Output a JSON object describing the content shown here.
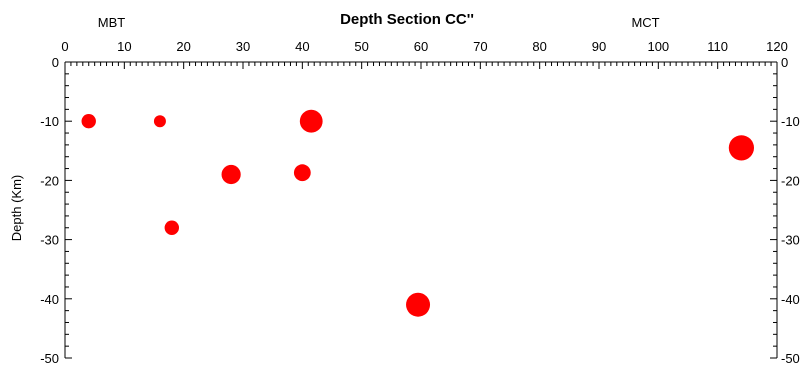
{
  "chart_data": {
    "type": "scatter",
    "title": "Depth Section CC''",
    "xlabel": "",
    "ylabel": "Depth (Km)",
    "xlim": [
      0,
      120
    ],
    "ylim": [
      -50,
      0
    ],
    "x_ticks": [
      0,
      10,
      20,
      30,
      40,
      50,
      60,
      70,
      80,
      90,
      100,
      110,
      120
    ],
    "y_ticks": [
      0,
      -10,
      -20,
      -30,
      -40,
      -50
    ],
    "x_minor_step": 1,
    "y_minor_step": 2,
    "grid": false,
    "x_axis_position": "top",
    "mirror_y_axis": true,
    "marker_color": "#ff0000",
    "annotations": [
      {
        "text": "MBT",
        "x": 7
      },
      {
        "text": "MCT",
        "x": 97
      }
    ],
    "points": [
      {
        "x": 4,
        "y": -10,
        "size": 1.2
      },
      {
        "x": 16,
        "y": -10,
        "size": 1.0
      },
      {
        "x": 18,
        "y": -28,
        "size": 1.2
      },
      {
        "x": 28,
        "y": -19,
        "size": 1.6
      },
      {
        "x": 40,
        "y": -18.7,
        "size": 1.4
      },
      {
        "x": 41.5,
        "y": -10,
        "size": 1.9
      },
      {
        "x": 59.5,
        "y": -41,
        "size": 2.0
      },
      {
        "x": 114,
        "y": -14.5,
        "size": 2.1
      }
    ]
  }
}
